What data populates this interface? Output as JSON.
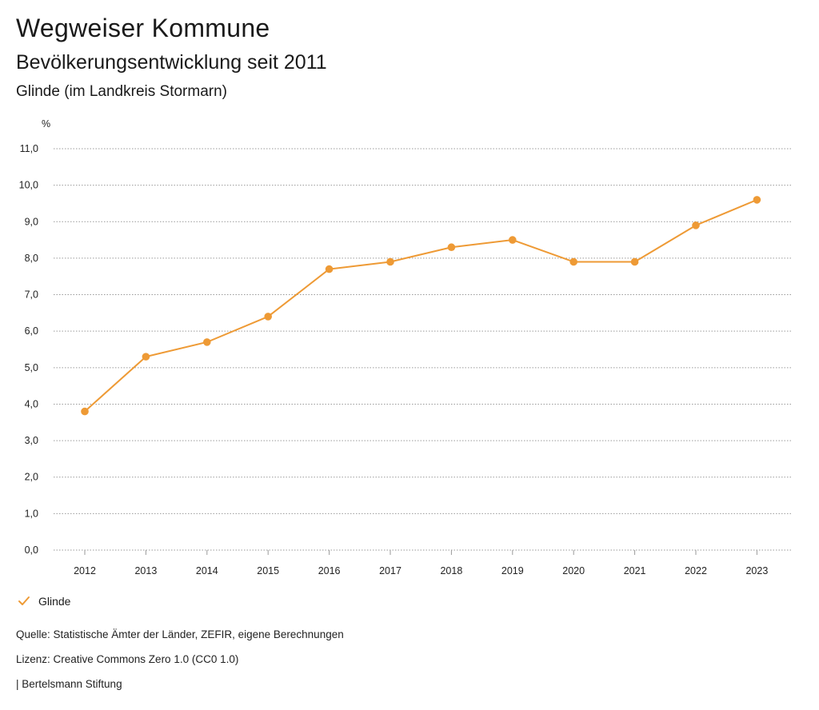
{
  "header": {
    "title": "Wegweiser Kommune",
    "subtitle": "Bevölkerungsentwicklung seit 2011",
    "region": "Glinde (im Landkreis Stormarn)"
  },
  "colors": {
    "series": "#ee9a35",
    "grid": "#9a9a9a"
  },
  "chart_data": {
    "type": "line",
    "title": "Bevölkerungsentwicklung seit 2011",
    "ylabel": "%",
    "xlabel": "",
    "ylim": [
      0,
      11
    ],
    "yticks": [
      "0,0",
      "1,0",
      "2,0",
      "3,0",
      "4,0",
      "5,0",
      "6,0",
      "7,0",
      "8,0",
      "9,0",
      "10,0",
      "11,0"
    ],
    "categories": [
      "2012",
      "2013",
      "2014",
      "2015",
      "2016",
      "2017",
      "2018",
      "2019",
      "2020",
      "2021",
      "2022",
      "2023"
    ],
    "series": [
      {
        "name": "Glinde",
        "values": [
          3.8,
          5.3,
          5.7,
          6.4,
          7.7,
          7.9,
          8.3,
          8.5,
          7.9,
          7.9,
          8.9,
          9.6
        ]
      }
    ],
    "grid": true,
    "legend": "bottom-left"
  },
  "legend": {
    "label": "Glinde",
    "icon": "check-icon"
  },
  "footer": {
    "source": "Quelle: Statistische Ämter der Länder, ZEFIR, eigene Berechnungen",
    "license": "Lizenz: Creative Commons Zero 1.0 (CC0 1.0)",
    "publisher": "| Bertelsmann Stiftung"
  }
}
